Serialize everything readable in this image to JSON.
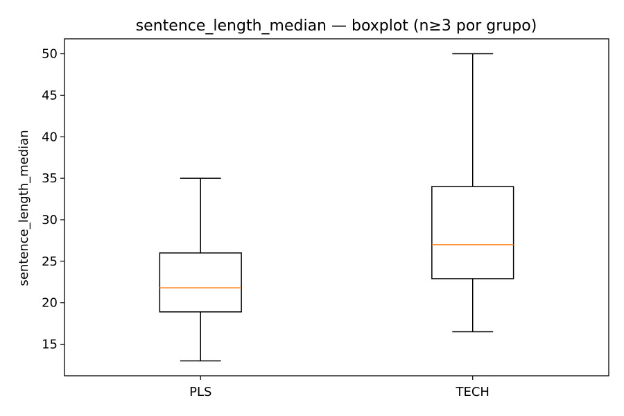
{
  "chart_data": {
    "type": "boxplot",
    "title": "sentence_length_median — boxplot (n≥3 por grupo)",
    "xlabel": "",
    "ylabel": "sentence_length_median",
    "ylim": [
      11.2,
      51.8
    ],
    "yticks": [
      15,
      20,
      25,
      30,
      35,
      40,
      45,
      50
    ],
    "grid": false,
    "categories": [
      "PLS",
      "TECH"
    ],
    "boxes": [
      {
        "category": "PLS",
        "whisker_low": 13.0,
        "q1": 18.9,
        "median": 21.8,
        "q3": 26.0,
        "whisker_high": 35.0
      },
      {
        "category": "TECH",
        "whisker_low": 16.5,
        "q1": 22.9,
        "median": 27.0,
        "q3": 34.0,
        "whisker_high": 50.0
      }
    ],
    "colors": {
      "box": "#000000",
      "median": "#ff7f0e",
      "axes": "#000000"
    }
  }
}
